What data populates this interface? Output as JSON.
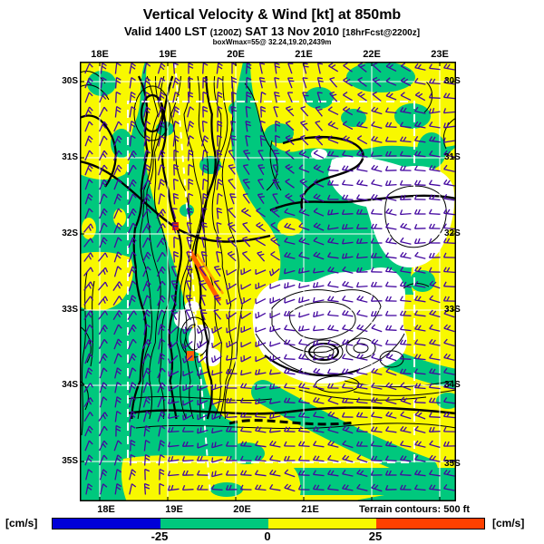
{
  "title": {
    "line1": "Vertical Velocity & Wind [kt] at 850mb",
    "valid_prefix": "Valid 1400 LST",
    "valid_small": "(1200Z)",
    "valid_date": "SAT 13 Nov 2010",
    "fcst_small": "[18hrFcst@2200z]",
    "footnote": "boxWmax=55@ 32.24,19.20,2439m"
  },
  "axes": {
    "top": [
      "18E",
      "19E",
      "20E",
      "21E",
      "22E",
      "23E"
    ],
    "bottom": [
      "18E",
      "19E",
      "20E",
      "21E"
    ],
    "left": [
      "30S",
      "31S",
      "32S",
      "33S",
      "34S",
      "35S"
    ],
    "right": [
      "30S",
      "31S",
      "32S",
      "33S",
      "34S",
      "35S"
    ]
  },
  "colorbar": {
    "unit_left": "[cm/s]",
    "unit_right": "[cm/s]",
    "ticks": [
      "-25",
      "0",
      "25"
    ],
    "colors": [
      "#0000D8",
      "#00C87D",
      "#F8F800",
      "#FF4000"
    ]
  },
  "terrain_note": "Terrain contours: 500 ft",
  "map_colors": {
    "green": "#00C87D",
    "yellow": "#F8F800",
    "white": "#FFFFFF",
    "contour": "#000000",
    "barb": "#4408A0",
    "grid": "#FFFFFF",
    "orange": "#FF6000",
    "orange2": "#FFA000",
    "red": "#E83000"
  },
  "chart_data": {
    "type": "heatmap",
    "title": "Vertical Velocity & Wind [kt] at 850mb",
    "subtitle": "Valid 1400 LST (1200Z) SAT 13 Nov 2010 [18hrFcst@2200z]",
    "footnote": "boxWmax=55@ 32.24,19.20,2439m",
    "x_ticks": [
      "18E",
      "19E",
      "20E",
      "21E",
      "22E",
      "23E"
    ],
    "y_ticks": [
      "30S",
      "31S",
      "32S",
      "33S",
      "34S",
      "35S"
    ],
    "colorbar": {
      "units": "cm/s",
      "tick_values": [
        -25,
        0,
        25
      ],
      "segment_colors": [
        "#0000D8",
        "#00C87D",
        "#F8F800",
        "#FF4000"
      ],
      "segment_meaning": [
        "below -25",
        "-25 to 0",
        "0 to 25",
        "above 25"
      ]
    },
    "terrain_contour_interval": "500 ft",
    "overlay": "wind barbs [kt] at 850mb; white dashed inner model-domain box",
    "inner_domain_box_shown": true,
    "wind_barb_grid_deg": [
      [
        -75,
        -80,
        -85,
        -95,
        -110,
        -140,
        -160,
        -170
      ],
      [
        -70,
        -75,
        -85,
        -100,
        -130,
        -160,
        -175,
        -180
      ],
      [
        -65,
        -70,
        -90,
        -120,
        -150,
        -175,
        185,
        185
      ],
      [
        -60,
        -65,
        -100,
        -140,
        -165,
        180,
        185,
        185
      ],
      [
        -55,
        -65,
        -120,
        150,
        170,
        185,
        185,
        190
      ],
      [
        -60,
        -70,
        140,
        160,
        180,
        190,
        190,
        190
      ],
      [
        -65,
        -75,
        160,
        175,
        185,
        190,
        192,
        190
      ],
      [
        -70,
        -80,
        170,
        182,
        188,
        190,
        188,
        186
      ],
      [
        -75,
        -85,
        175,
        185,
        190,
        188,
        185,
        183
      ]
    ]
  }
}
